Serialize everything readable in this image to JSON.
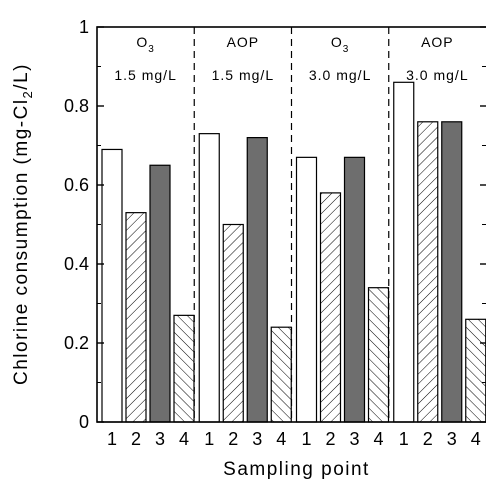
{
  "chart_data": {
    "type": "bar",
    "xlabel": "Sampling point",
    "ylabel": "Chlorine consumption (mg-Cl2/L)",
    "ylabel_parts": {
      "pre": "Chlorine consumption (mg-Cl",
      "sub": "2",
      "post": "/L)"
    },
    "ylim": [
      0,
      1
    ],
    "yticks": [
      "0",
      "0.2",
      "0.4",
      "0.6",
      "0.8",
      "1"
    ],
    "grid": false,
    "categories": [
      "1",
      "2",
      "3",
      "4"
    ],
    "groups": [
      {
        "process": "O",
        "process_sub": "3",
        "dose": "1.5 mg/L",
        "values": [
          0.69,
          0.53,
          0.65,
          0.27
        ]
      },
      {
        "process": "AOP",
        "process_sub": "",
        "dose": "1.5 mg/L",
        "values": [
          0.73,
          0.5,
          0.72,
          0.24
        ]
      },
      {
        "process": "O",
        "process_sub": "3",
        "dose": "3.0 mg/L",
        "values": [
          0.67,
          0.58,
          0.67,
          0.34
        ]
      },
      {
        "process": "AOP",
        "process_sub": "",
        "dose": "3.0 mg/L",
        "values": [
          0.86,
          0.76,
          0.76,
          0.26
        ]
      }
    ],
    "bar_styles": [
      "white",
      "hatch-forward",
      "dark-gray",
      "hatch-back"
    ],
    "colors": {
      "dark_bar": "#6e6e6e",
      "outline": "#000000",
      "background": "#ffffff"
    }
  }
}
